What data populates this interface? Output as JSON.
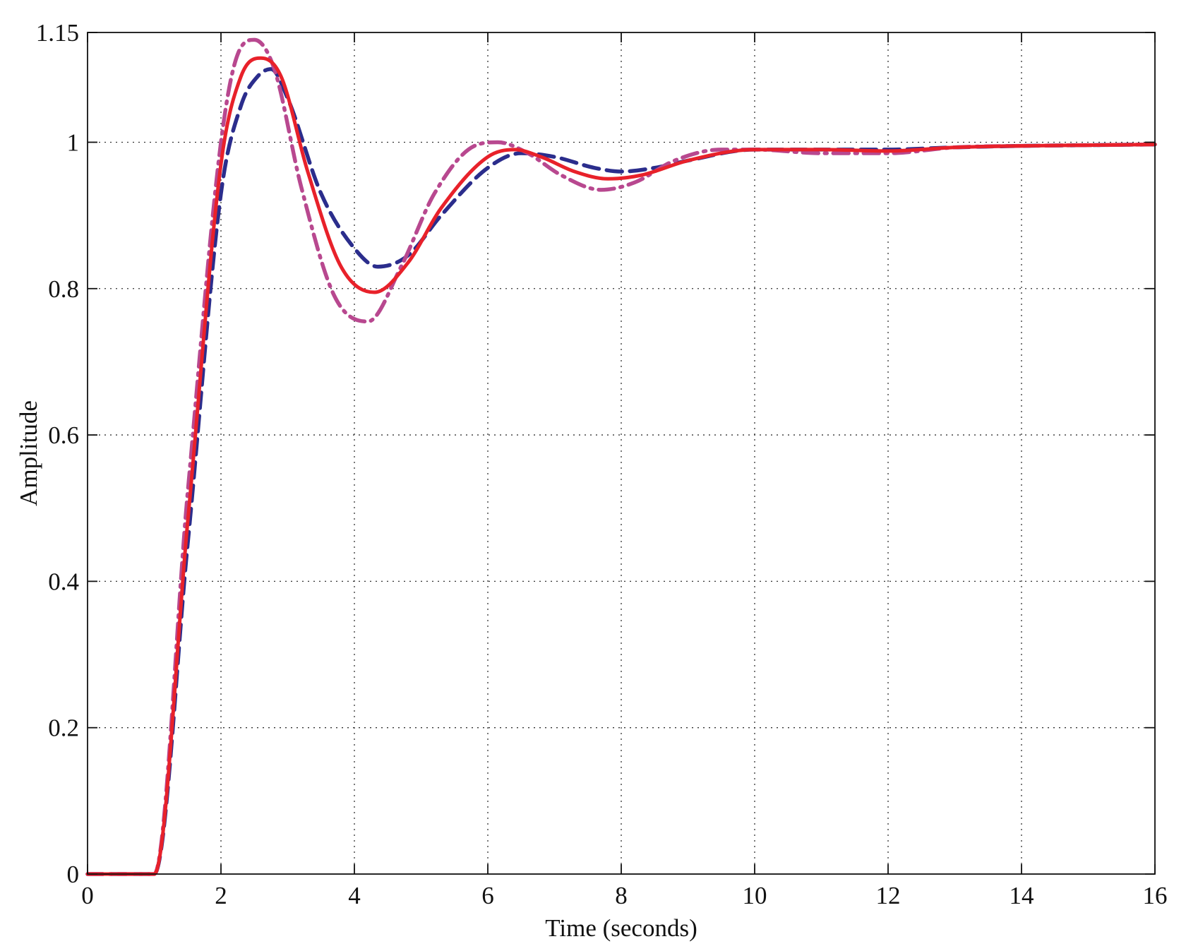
{
  "chart_data": {
    "type": "line",
    "title": "",
    "xlabel": "Time (seconds)",
    "ylabel": "Amplitude",
    "xlim": [
      0,
      16
    ],
    "ylim": [
      0,
      1.15
    ],
    "xticks": [
      "0",
      "2",
      "4",
      "6",
      "8",
      "10",
      "12",
      "14",
      "16"
    ],
    "yticks": [
      "0",
      "0.2",
      "0.4",
      "0.6",
      "0.8",
      "1",
      "1.15"
    ],
    "grid": true,
    "series": [
      {
        "color": "#2b2d8c",
        "style": "dashed",
        "x": [
          0,
          1.0,
          1.5,
          2.0,
          2.3,
          2.55,
          2.75,
          3.0,
          3.5,
          4.0,
          4.35,
          4.8,
          5.3,
          6.0,
          6.5,
          7.0,
          7.6,
          8.0,
          8.5,
          9.0,
          10.0,
          11.0,
          12.0,
          13.0,
          14.0,
          15.0,
          16.0
        ],
        "y": [
          0,
          0,
          0.45,
          0.93,
          1.05,
          1.09,
          1.1,
          1.06,
          0.93,
          0.855,
          0.83,
          0.845,
          0.9,
          0.965,
          0.985,
          0.98,
          0.965,
          0.96,
          0.965,
          0.975,
          0.99,
          0.99,
          0.99,
          0.993,
          0.995,
          0.996,
          0.997
        ]
      },
      {
        "color": "#e8212a",
        "style": "solid",
        "x": [
          0,
          1.0,
          1.5,
          2.0,
          2.3,
          2.6,
          2.9,
          3.3,
          3.8,
          4.3,
          4.8,
          5.3,
          6.0,
          6.4,
          6.8,
          7.3,
          7.8,
          8.3,
          9.0,
          10.0,
          11.0,
          12.0,
          13.0,
          14.0,
          15.0,
          16.0
        ],
        "y": [
          0,
          0,
          0.48,
          0.97,
          1.09,
          1.115,
          1.09,
          0.96,
          0.83,
          0.795,
          0.835,
          0.91,
          0.98,
          0.99,
          0.98,
          0.96,
          0.95,
          0.955,
          0.975,
          0.99,
          0.99,
          0.988,
          0.993,
          0.995,
          0.996,
          0.997
        ]
      },
      {
        "color": "#b8488f",
        "style": "dash-dot",
        "x": [
          0,
          1.0,
          1.5,
          2.0,
          2.25,
          2.5,
          2.8,
          3.2,
          3.7,
          4.2,
          4.7,
          5.2,
          5.8,
          6.15,
          6.6,
          7.1,
          7.7,
          8.2,
          8.8,
          9.5,
          10.0,
          11.0,
          12.0,
          13.0,
          14.0,
          15.0,
          16.0
        ],
        "y": [
          0,
          0,
          0.52,
          1.0,
          1.12,
          1.14,
          1.1,
          0.94,
          0.79,
          0.755,
          0.83,
          0.93,
          0.995,
          1.0,
          0.985,
          0.955,
          0.935,
          0.945,
          0.975,
          0.99,
          0.99,
          0.985,
          0.985,
          0.993,
          0.995,
          0.996,
          0.997
        ]
      }
    ]
  }
}
